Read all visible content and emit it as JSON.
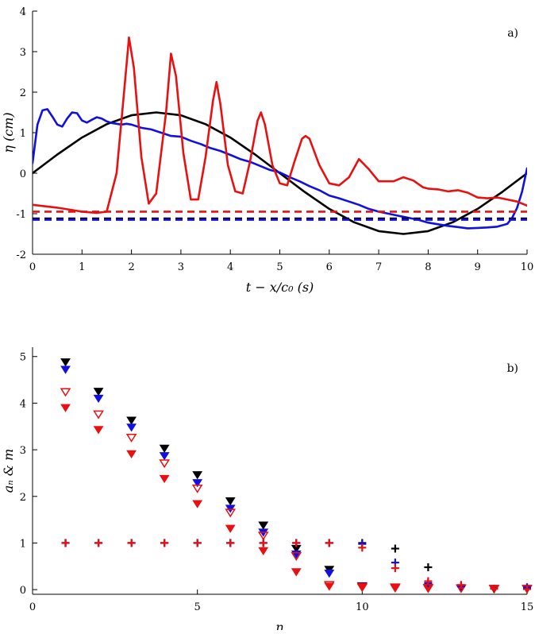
{
  "colors": {
    "black": "#000000",
    "blue": "#1010e0",
    "red": "#e81010"
  },
  "chart_data": [
    {
      "type": "line",
      "panel_label": "a)",
      "xlabel": "t − x/c₀   (s)",
      "ylabel": "η  (cm)",
      "xlim": [
        0,
        10
      ],
      "ylim": [
        -2,
        4
      ],
      "x_ticks": [
        "0",
        "1",
        "2",
        "3",
        "4",
        "5",
        "6",
        "7",
        "8",
        "9",
        "10"
      ],
      "y_ticks": [
        "-2",
        "-1",
        "0",
        "1",
        "2",
        "3",
        "4"
      ],
      "series": [
        {
          "name": "black sinusoid",
          "color": "black",
          "style": "solid",
          "x": [
            0,
            0.5,
            1.0,
            1.5,
            2.0,
            2.5,
            3.0,
            3.5,
            4.0,
            4.5,
            5.0,
            5.5,
            6.0,
            6.5,
            7.0,
            7.5,
            8.0,
            8.5,
            9.0,
            9.5,
            10.0
          ],
          "y": [
            0.0,
            0.46,
            0.88,
            1.21,
            1.43,
            1.5,
            1.43,
            1.21,
            0.88,
            0.46,
            0.0,
            -0.46,
            -0.88,
            -1.21,
            -1.43,
            -1.5,
            -1.43,
            -1.21,
            -0.88,
            -0.46,
            0.0
          ]
        },
        {
          "name": "blue",
          "color": "blue",
          "style": "solid",
          "x": [
            0,
            0.1,
            0.2,
            0.3,
            0.4,
            0.5,
            0.6,
            0.7,
            0.8,
            0.9,
            1.0,
            1.1,
            1.2,
            1.3,
            1.4,
            1.5,
            1.6,
            1.7,
            1.8,
            1.9,
            2.0,
            2.2,
            2.4,
            2.6,
            2.8,
            3.0,
            3.2,
            3.4,
            3.6,
            3.8,
            4.0,
            4.2,
            4.4,
            4.6,
            4.8,
            5.0,
            5.2,
            5.4,
            5.6,
            5.8,
            6.0,
            6.2,
            6.4,
            6.6,
            6.8,
            7.0,
            7.2,
            7.4,
            7.6,
            7.8,
            8.0,
            8.2,
            8.4,
            8.6,
            8.8,
            9.0,
            9.2,
            9.4,
            9.6,
            9.7,
            9.8,
            9.9,
            10.0
          ],
          "y": [
            0.25,
            1.2,
            1.55,
            1.58,
            1.4,
            1.2,
            1.15,
            1.35,
            1.5,
            1.48,
            1.3,
            1.25,
            1.32,
            1.38,
            1.35,
            1.28,
            1.24,
            1.22,
            1.2,
            1.22,
            1.2,
            1.12,
            1.08,
            1.0,
            0.92,
            0.9,
            0.8,
            0.72,
            0.62,
            0.55,
            0.45,
            0.35,
            0.28,
            0.18,
            0.08,
            0.02,
            -0.1,
            -0.2,
            -0.32,
            -0.42,
            -0.55,
            -0.62,
            -0.7,
            -0.78,
            -0.88,
            -0.95,
            -1.0,
            -1.05,
            -1.1,
            -1.15,
            -1.22,
            -1.26,
            -1.3,
            -1.33,
            -1.36,
            -1.35,
            -1.34,
            -1.32,
            -1.25,
            -1.1,
            -0.85,
            -0.45,
            0.12
          ]
        },
        {
          "name": "red",
          "color": "red",
          "style": "solid",
          "x": [
            0,
            0.5,
            1.0,
            1.3,
            1.5,
            1.7,
            1.85,
            1.95,
            2.05,
            2.2,
            2.35,
            2.5,
            2.7,
            2.8,
            2.9,
            3.05,
            3.2,
            3.35,
            3.5,
            3.65,
            3.72,
            3.8,
            3.95,
            4.1,
            4.25,
            4.4,
            4.55,
            4.62,
            4.7,
            4.85,
            5.0,
            5.15,
            5.3,
            5.45,
            5.52,
            5.6,
            5.8,
            6.0,
            6.2,
            6.4,
            6.6,
            6.8,
            7.0,
            7.3,
            7.5,
            7.7,
            7.9,
            8.0,
            8.2,
            8.4,
            8.6,
            8.8,
            9.0,
            9.2,
            9.4,
            9.6,
            9.8,
            10.0
          ],
          "y": [
            -0.78,
            -0.85,
            -0.95,
            -0.98,
            -0.95,
            0.0,
            2.0,
            3.35,
            2.6,
            0.4,
            -0.75,
            -0.5,
            1.5,
            2.95,
            2.4,
            0.5,
            -0.65,
            -0.65,
            0.4,
            1.8,
            2.25,
            1.7,
            0.2,
            -0.45,
            -0.5,
            0.3,
            1.3,
            1.5,
            1.2,
            0.2,
            -0.25,
            -0.3,
            0.3,
            0.85,
            0.92,
            0.85,
            0.2,
            -0.25,
            -0.3,
            -0.1,
            0.35,
            0.1,
            -0.2,
            -0.2,
            -0.1,
            -0.18,
            -0.35,
            -0.38,
            -0.4,
            -0.45,
            -0.42,
            -0.48,
            -0.6,
            -0.62,
            -0.6,
            -0.65,
            -0.7,
            -0.8
          ]
        },
        {
          "name": "red dashed level",
          "color": "red",
          "style": "dashed",
          "x": [
            0,
            10
          ],
          "y": [
            -0.95,
            -0.95
          ]
        },
        {
          "name": "black dashed level",
          "color": "black",
          "style": "dashed",
          "x": [
            0,
            10
          ],
          "y": [
            -1.12,
            -1.12
          ]
        },
        {
          "name": "blue dashed level",
          "color": "blue",
          "style": "dashed",
          "x": [
            0,
            10
          ],
          "y": [
            -1.15,
            -1.15
          ]
        }
      ]
    },
    {
      "type": "scatter",
      "panel_label": "b)",
      "xlabel": "n",
      "ylabel": "aₙ  &  m",
      "xlim": [
        0,
        15
      ],
      "ylim": [
        -0.1,
        5.2
      ],
      "x_ticks": [
        "0",
        "5",
        "10",
        "15"
      ],
      "y_ticks": [
        "0",
        "1",
        "2",
        "3",
        "4",
        "5"
      ],
      "series": [
        {
          "name": "black a_n",
          "color": "black",
          "marker": "triangle-down-filled",
          "x": [
            1,
            2,
            3,
            4,
            5,
            6,
            7,
            8,
            9,
            10,
            11,
            12,
            13,
            14,
            15
          ],
          "y": [
            4.88,
            4.25,
            3.63,
            3.03,
            2.46,
            1.9,
            1.38,
            0.88,
            0.43,
            0.08,
            0.05,
            0.04,
            0.03,
            0.02,
            0.02
          ]
        },
        {
          "name": "blue a_n",
          "color": "blue",
          "marker": "triangle-down-filled",
          "x": [
            1,
            2,
            3,
            4,
            5,
            6,
            7,
            8,
            9,
            10,
            11,
            12,
            13,
            14,
            15
          ],
          "y": [
            4.72,
            4.1,
            3.48,
            2.87,
            2.29,
            1.74,
            1.23,
            0.76,
            0.35,
            0.07,
            0.05,
            0.04,
            0.03,
            0.02,
            0.02
          ]
        },
        {
          "name": "red a_n open",
          "color": "red",
          "marker": "triangle-down-open",
          "x": [
            1,
            2,
            3,
            4,
            5,
            6,
            7,
            8,
            9,
            10,
            11,
            12,
            13,
            14,
            15
          ],
          "y": [
            4.24,
            3.76,
            3.26,
            2.71,
            2.17,
            1.65,
            1.16,
            0.72,
            0.1,
            0.06,
            0.05,
            0.04,
            0.03,
            0.02,
            0.02
          ]
        },
        {
          "name": "red a_n filled",
          "color": "red",
          "marker": "triangle-down-filled",
          "x": [
            1,
            2,
            3,
            4,
            5,
            6,
            7,
            8,
            9,
            10,
            11,
            12,
            13,
            14,
            15
          ],
          "y": [
            3.9,
            3.43,
            2.91,
            2.38,
            1.84,
            1.31,
            0.83,
            0.38,
            0.07,
            0.04,
            0.03,
            0.02,
            0.02,
            0.01,
            0.01
          ]
        },
        {
          "name": "black m",
          "color": "black",
          "marker": "plus",
          "x": [
            1,
            2,
            3,
            4,
            5,
            6,
            7,
            8,
            9,
            10,
            11,
            12,
            13,
            14,
            15
          ],
          "y": [
            1,
            1,
            1,
            1,
            1,
            1,
            1,
            1,
            1,
            1,
            0.88,
            0.48,
            0.08,
            0.02,
            0.03
          ]
        },
        {
          "name": "blue m",
          "color": "blue",
          "marker": "plus",
          "x": [
            1,
            2,
            3,
            4,
            5,
            6,
            7,
            8,
            9,
            10,
            11,
            12,
            13,
            14,
            15
          ],
          "y": [
            1,
            1,
            1,
            1,
            1,
            1,
            1,
            1,
            1,
            0.98,
            0.58,
            0.14,
            0.07,
            0.02,
            0.05
          ]
        },
        {
          "name": "red m",
          "color": "red",
          "marker": "plus",
          "x": [
            1,
            2,
            3,
            4,
            5,
            6,
            7,
            8,
            9,
            10,
            11,
            12,
            13,
            14,
            15
          ],
          "y": [
            1,
            1,
            1,
            1,
            1,
            1,
            1,
            1,
            1,
            0.9,
            0.46,
            0.18,
            0.1,
            0.02,
            0.01
          ]
        }
      ]
    }
  ]
}
